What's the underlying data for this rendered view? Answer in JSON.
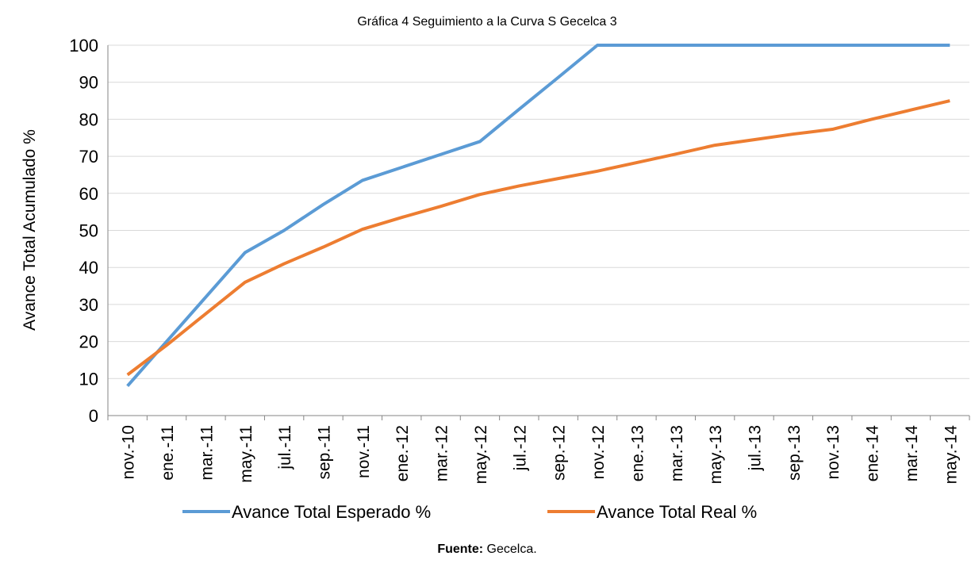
{
  "chart_data": {
    "type": "line",
    "title": "Gráfica 4 Seguimiento a la Curva S Gecelca 3",
    "y_label": "Avance Total Acumulado %",
    "categories": [
      "nov.-10",
      "ene.-11",
      "mar.-11",
      "may.-11",
      "jul.-11",
      "sep.-11",
      "nov.-11",
      "ene.-12",
      "mar.-12",
      "may.-12",
      "jul.-12",
      "sep.-12",
      "nov.-12",
      "ene.-13",
      "mar.-13",
      "may.-13",
      "jul.-13",
      "sep.-13",
      "nov.-13",
      "ene.-14",
      "mar.-14",
      "may.-14"
    ],
    "series": [
      {
        "name": "Avance Total Esperado %",
        "color": "#5b9bd5",
        "values": [
          8,
          20,
          32,
          44,
          50,
          57,
          63.5,
          67,
          70.5,
          74,
          82.7,
          91.3,
          100,
          100,
          100,
          100,
          100,
          100,
          100,
          100,
          100,
          100
        ]
      },
      {
        "name": "Avance Total Real %",
        "color": "#ed7d31",
        "values": [
          11,
          19,
          27.5,
          36,
          41,
          45.5,
          50.3,
          53.5,
          56.5,
          59.7,
          62,
          64,
          66,
          68.3,
          70.6,
          73,
          74.5,
          76,
          77.3,
          80,
          82.5,
          85
        ]
      }
    ],
    "ylim": [
      0,
      100
    ],
    "yticks": [
      0,
      10,
      20,
      30,
      40,
      50,
      60,
      70,
      80,
      90,
      100
    ],
    "grid": true,
    "legend": "bottom",
    "source": {
      "label": "Fuente:",
      "text": "Gecelca."
    }
  }
}
